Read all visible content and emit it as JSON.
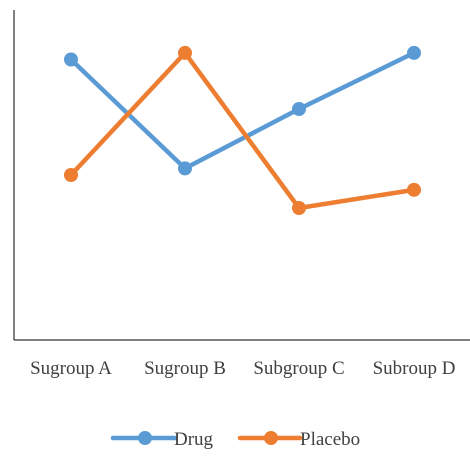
{
  "chart_data": {
    "type": "line",
    "categories": [
      "Sugroup A",
      "Sugroup B",
      "Subgroup C",
      "Subroup D"
    ],
    "series": [
      {
        "name": "Drug",
        "values": [
          0.85,
          0.52,
          0.7,
          0.87
        ],
        "color": "#5B9BD5"
      },
      {
        "name": "Placebo",
        "values": [
          0.5,
          0.87,
          0.4,
          0.455
        ],
        "color": "#ED7D31"
      }
    ],
    "ylim": [
      0,
      1
    ],
    "grid": false,
    "legend": "bottom"
  }
}
